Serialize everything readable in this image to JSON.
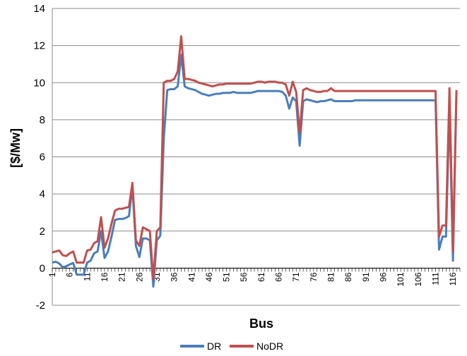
{
  "chart_data": {
    "type": "line",
    "title": "",
    "xlabel": "Bus",
    "ylabel": "[$/Mw]",
    "ylim": [
      -2,
      14
    ],
    "yticks": [
      -2,
      0,
      2,
      4,
      6,
      8,
      10,
      12,
      14
    ],
    "xticks": [
      1,
      6,
      11,
      16,
      21,
      26,
      31,
      36,
      41,
      46,
      51,
      56,
      61,
      66,
      71,
      76,
      81,
      86,
      91,
      96,
      101,
      106,
      111,
      116
    ],
    "x_range": [
      1,
      118
    ],
    "grid": "horizontal",
    "legend_position": "bottom",
    "series": [
      {
        "name": "DR",
        "color": "#4a7ebb",
        "points": [
          [
            1,
            0.3
          ],
          [
            2,
            0.35
          ],
          [
            3,
            0.25
          ],
          [
            4,
            0.05
          ],
          [
            5,
            0.1
          ],
          [
            6,
            0.2
          ],
          [
            7,
            0.28
          ],
          [
            8,
            -0.35
          ],
          [
            9,
            -0.35
          ],
          [
            10,
            -0.35
          ],
          [
            11,
            0.3
          ],
          [
            12,
            0.4
          ],
          [
            13,
            0.8
          ],
          [
            14,
            0.9
          ],
          [
            15,
            2.0
          ],
          [
            16,
            0.55
          ],
          [
            17,
            0.9
          ],
          [
            18,
            1.7
          ],
          [
            19,
            2.6
          ],
          [
            20,
            2.65
          ],
          [
            21,
            2.65
          ],
          [
            22,
            2.7
          ],
          [
            23,
            2.8
          ],
          [
            24,
            4.4
          ],
          [
            25,
            1.2
          ],
          [
            26,
            0.6
          ],
          [
            27,
            1.6
          ],
          [
            28,
            1.6
          ],
          [
            29,
            1.5
          ],
          [
            30,
            -1.0
          ],
          [
            31,
            1.5
          ],
          [
            32,
            1.75
          ],
          [
            33,
            7.0
          ],
          [
            34,
            9.6
          ],
          [
            35,
            9.65
          ],
          [
            36,
            9.65
          ],
          [
            37,
            9.8
          ],
          [
            38,
            11.5
          ],
          [
            39,
            9.8
          ],
          [
            40,
            9.7
          ],
          [
            41,
            9.65
          ],
          [
            42,
            9.6
          ],
          [
            43,
            9.5
          ],
          [
            44,
            9.4
          ],
          [
            45,
            9.35
          ],
          [
            46,
            9.3
          ],
          [
            47,
            9.35
          ],
          [
            48,
            9.4
          ],
          [
            49,
            9.4
          ],
          [
            50,
            9.45
          ],
          [
            51,
            9.45
          ],
          [
            52,
            9.45
          ],
          [
            53,
            9.5
          ],
          [
            54,
            9.45
          ],
          [
            55,
            9.45
          ],
          [
            56,
            9.45
          ],
          [
            57,
            9.45
          ],
          [
            58,
            9.45
          ],
          [
            59,
            9.5
          ],
          [
            60,
            9.55
          ],
          [
            61,
            9.55
          ],
          [
            62,
            9.55
          ],
          [
            63,
            9.55
          ],
          [
            64,
            9.55
          ],
          [
            65,
            9.55
          ],
          [
            66,
            9.55
          ],
          [
            67,
            9.5
          ],
          [
            68,
            9.3
          ],
          [
            69,
            8.6
          ],
          [
            70,
            9.2
          ],
          [
            71,
            9.0
          ],
          [
            72,
            6.6
          ],
          [
            73,
            9.0
          ],
          [
            74,
            9.1
          ],
          [
            75,
            9.05
          ],
          [
            76,
            9.0
          ],
          [
            77,
            8.95
          ],
          [
            78,
            9.0
          ],
          [
            79,
            9.0
          ],
          [
            80,
            9.05
          ],
          [
            81,
            9.1
          ],
          [
            82,
            9.0
          ],
          [
            83,
            9.0
          ],
          [
            84,
            9.0
          ],
          [
            85,
            9.0
          ],
          [
            86,
            9.0
          ],
          [
            87,
            9.0
          ],
          [
            88,
            9.05
          ],
          [
            90,
            9.05
          ],
          [
            95,
            9.05
          ],
          [
            100,
            9.05
          ],
          [
            105,
            9.05
          ],
          [
            110,
            9.05
          ],
          [
            111,
            9.05
          ],
          [
            112,
            1.0
          ],
          [
            113,
            1.7
          ],
          [
            114,
            1.7
          ],
          [
            115,
            8.7
          ],
          [
            116,
            0.4
          ],
          [
            117,
            9.5
          ]
        ]
      },
      {
        "name": "NoDR",
        "color": "#c0504d",
        "points": [
          [
            1,
            0.85
          ],
          [
            2,
            0.9
          ],
          [
            3,
            0.95
          ],
          [
            4,
            0.7
          ],
          [
            5,
            0.65
          ],
          [
            6,
            0.8
          ],
          [
            7,
            0.9
          ],
          [
            8,
            0.3
          ],
          [
            9,
            0.3
          ],
          [
            10,
            0.3
          ],
          [
            11,
            0.95
          ],
          [
            12,
            1.0
          ],
          [
            13,
            1.35
          ],
          [
            14,
            1.45
          ],
          [
            15,
            2.75
          ],
          [
            16,
            1.1
          ],
          [
            17,
            1.6
          ],
          [
            18,
            2.4
          ],
          [
            19,
            3.1
          ],
          [
            20,
            3.2
          ],
          [
            21,
            3.2
          ],
          [
            22,
            3.25
          ],
          [
            23,
            3.3
          ],
          [
            24,
            4.6
          ],
          [
            25,
            1.5
          ],
          [
            26,
            1.2
          ],
          [
            27,
            2.2
          ],
          [
            28,
            2.1
          ],
          [
            29,
            2.0
          ],
          [
            30,
            -0.6
          ],
          [
            31,
            2.0
          ],
          [
            32,
            2.2
          ],
          [
            33,
            10.0
          ],
          [
            34,
            10.1
          ],
          [
            35,
            10.1
          ],
          [
            36,
            10.2
          ],
          [
            37,
            10.6
          ],
          [
            38,
            12.5
          ],
          [
            39,
            10.2
          ],
          [
            40,
            10.2
          ],
          [
            41,
            10.15
          ],
          [
            42,
            10.1
          ],
          [
            43,
            10.0
          ],
          [
            44,
            9.95
          ],
          [
            45,
            9.9
          ],
          [
            46,
            9.85
          ],
          [
            47,
            9.8
          ],
          [
            48,
            9.85
          ],
          [
            49,
            9.9
          ],
          [
            50,
            9.9
          ],
          [
            51,
            9.95
          ],
          [
            52,
            9.95
          ],
          [
            53,
            9.95
          ],
          [
            54,
            9.95
          ],
          [
            55,
            9.95
          ],
          [
            56,
            9.95
          ],
          [
            57,
            9.95
          ],
          [
            58,
            9.95
          ],
          [
            59,
            10.0
          ],
          [
            60,
            10.05
          ],
          [
            61,
            10.05
          ],
          [
            62,
            10.0
          ],
          [
            63,
            10.05
          ],
          [
            64,
            10.05
          ],
          [
            65,
            10.05
          ],
          [
            66,
            10.0
          ],
          [
            67,
            10.0
          ],
          [
            68,
            9.9
          ],
          [
            69,
            9.3
          ],
          [
            70,
            10.05
          ],
          [
            71,
            9.5
          ],
          [
            72,
            7.3
          ],
          [
            73,
            9.6
          ],
          [
            74,
            9.7
          ],
          [
            75,
            9.6
          ],
          [
            76,
            9.55
          ],
          [
            77,
            9.5
          ],
          [
            78,
            9.5
          ],
          [
            79,
            9.55
          ],
          [
            80,
            9.55
          ],
          [
            81,
            9.7
          ],
          [
            82,
            9.55
          ],
          [
            83,
            9.55
          ],
          [
            84,
            9.55
          ],
          [
            85,
            9.55
          ],
          [
            86,
            9.55
          ],
          [
            87,
            9.55
          ],
          [
            88,
            9.55
          ],
          [
            89,
            9.55
          ],
          [
            90,
            9.55
          ],
          [
            95,
            9.55
          ],
          [
            100,
            9.55
          ],
          [
            105,
            9.55
          ],
          [
            110,
            9.55
          ],
          [
            111,
            9.55
          ],
          [
            112,
            1.7
          ],
          [
            113,
            2.3
          ],
          [
            114,
            2.3
          ],
          [
            115,
            9.7
          ],
          [
            116,
            0.9
          ],
          [
            117,
            9.6
          ]
        ]
      }
    ]
  }
}
